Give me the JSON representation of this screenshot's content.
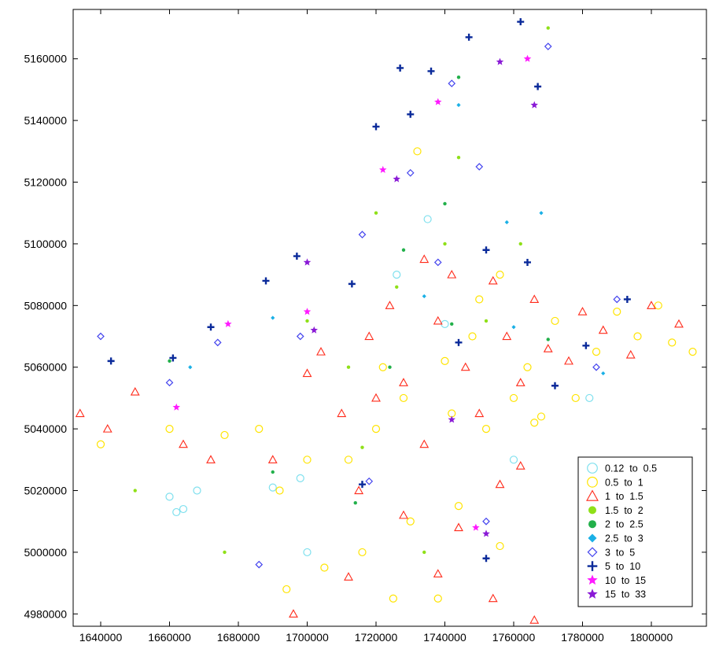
{
  "chart_data": {
    "type": "scatter",
    "title": "",
    "xlabel": "",
    "ylabel": "",
    "xlim": [
      1632000,
      1816000
    ],
    "ylim": [
      4976000,
      5176000
    ],
    "grid": false,
    "legend_position": "bottom-right",
    "x_ticks": [
      "1640000",
      "1660000",
      "1680000",
      "1700000",
      "1720000",
      "1740000",
      "1760000",
      "1780000",
      "1800000"
    ],
    "x_tick_values": [
      1640000,
      1660000,
      1680000,
      1700000,
      1720000,
      1740000,
      1760000,
      1780000,
      1800000
    ],
    "y_ticks": [
      "4980000",
      "5000000",
      "5020000",
      "5040000",
      "5060000",
      "5080000",
      "5100000",
      "5120000",
      "5140000",
      "5160000"
    ],
    "y_tick_values": [
      4980000,
      5000000,
      5020000,
      5040000,
      5060000,
      5080000,
      5100000,
      5120000,
      5140000,
      5160000
    ],
    "series": [
      {
        "name": "0.12  to  0.5",
        "marker": "open-circle",
        "color": "#7fe0ee",
        "points": [
          [
            1660000,
            5018000
          ],
          [
            1664000,
            5014000
          ],
          [
            1668000,
            5020000
          ],
          [
            1690000,
            5021000
          ],
          [
            1698000,
            5024000
          ],
          [
            1740000,
            5074000
          ],
          [
            1760000,
            5030000
          ],
          [
            1782000,
            5050000
          ],
          [
            1662000,
            5013000
          ],
          [
            1726000,
            5090000
          ],
          [
            1735000,
            5108000
          ],
          [
            1700000,
            5000000
          ]
        ]
      },
      {
        "name": "0.5  to  1",
        "marker": "open-circle",
        "color": "#ffe400",
        "points": [
          [
            1640000,
            5035000
          ],
          [
            1660000,
            5040000
          ],
          [
            1676000,
            5038000
          ],
          [
            1692000,
            5020000
          ],
          [
            1700000,
            5030000
          ],
          [
            1705000,
            4995000
          ],
          [
            1712000,
            5030000
          ],
          [
            1720000,
            5040000
          ],
          [
            1722000,
            5060000
          ],
          [
            1730000,
            5010000
          ],
          [
            1738000,
            4985000
          ],
          [
            1742000,
            5045000
          ],
          [
            1748000,
            5070000
          ],
          [
            1752000,
            5040000
          ],
          [
            1756000,
            5090000
          ],
          [
            1760000,
            5050000
          ],
          [
            1764000,
            5060000
          ],
          [
            1768000,
            5044000
          ],
          [
            1772000,
            5075000
          ],
          [
            1778000,
            5050000
          ],
          [
            1784000,
            5065000
          ],
          [
            1790000,
            5078000
          ],
          [
            1796000,
            5070000
          ],
          [
            1802000,
            5080000
          ],
          [
            1806000,
            5068000
          ],
          [
            1812000,
            5065000
          ],
          [
            1732000,
            5130000
          ],
          [
            1744000,
            5015000
          ],
          [
            1756000,
            5002000
          ],
          [
            1686000,
            5040000
          ],
          [
            1716000,
            5000000
          ],
          [
            1728000,
            5050000
          ],
          [
            1740000,
            5062000
          ],
          [
            1750000,
            5082000
          ],
          [
            1766000,
            5042000
          ],
          [
            1694000,
            4988000
          ],
          [
            1725000,
            4985000
          ]
        ]
      },
      {
        "name": "1  to  1.5",
        "marker": "open-triangle",
        "color": "#ff2a1a",
        "points": [
          [
            1634000,
            5045000
          ],
          [
            1642000,
            5040000
          ],
          [
            1650000,
            5052000
          ],
          [
            1664000,
            5035000
          ],
          [
            1672000,
            5030000
          ],
          [
            1690000,
            5030000
          ],
          [
            1704000,
            5065000
          ],
          [
            1710000,
            5045000
          ],
          [
            1715000,
            5020000
          ],
          [
            1718000,
            5070000
          ],
          [
            1724000,
            5080000
          ],
          [
            1728000,
            5055000
          ],
          [
            1734000,
            5035000
          ],
          [
            1738000,
            5075000
          ],
          [
            1742000,
            5090000
          ],
          [
            1746000,
            5060000
          ],
          [
            1750000,
            5045000
          ],
          [
            1754000,
            5088000
          ],
          [
            1758000,
            5070000
          ],
          [
            1762000,
            5055000
          ],
          [
            1766000,
            5082000
          ],
          [
            1770000,
            5066000
          ],
          [
            1776000,
            5062000
          ],
          [
            1780000,
            5078000
          ],
          [
            1786000,
            5072000
          ],
          [
            1794000,
            5064000
          ],
          [
            1800000,
            5080000
          ],
          [
            1808000,
            5074000
          ],
          [
            1728000,
            5012000
          ],
          [
            1738000,
            4993000
          ],
          [
            1744000,
            5008000
          ],
          [
            1754000,
            4985000
          ],
          [
            1762000,
            5028000
          ],
          [
            1712000,
            4992000
          ],
          [
            1696000,
            4980000
          ],
          [
            1720000,
            5050000
          ],
          [
            1734000,
            5095000
          ],
          [
            1756000,
            5022000
          ],
          [
            1766000,
            4978000
          ],
          [
            1700000,
            5058000
          ]
        ]
      },
      {
        "name": "1.5  to  2",
        "marker": "filled-circle",
        "color": "#8fe018",
        "points": [
          [
            1650000,
            5020000
          ],
          [
            1676000,
            5000000
          ],
          [
            1700000,
            5075000
          ],
          [
            1712000,
            5060000
          ],
          [
            1720000,
            5110000
          ],
          [
            1726000,
            5086000
          ],
          [
            1740000,
            5100000
          ],
          [
            1752000,
            5075000
          ],
          [
            1762000,
            5100000
          ],
          [
            1770000,
            5170000
          ],
          [
            1744000,
            5128000
          ],
          [
            1734000,
            5000000
          ],
          [
            1716000,
            5034000
          ]
        ]
      },
      {
        "name": "2  to  2.5",
        "marker": "filled-circle",
        "color": "#22b04a",
        "points": [
          [
            1660000,
            5062000
          ],
          [
            1690000,
            5026000
          ],
          [
            1714000,
            5016000
          ],
          [
            1728000,
            5098000
          ],
          [
            1742000,
            5074000
          ],
          [
            1740000,
            5113000
          ],
          [
            1770000,
            5069000
          ],
          [
            1744000,
            5154000
          ],
          [
            1724000,
            5060000
          ]
        ]
      },
      {
        "name": "2.5  to  3",
        "marker": "filled-diamond",
        "color": "#1ab0e6",
        "points": [
          [
            1666000,
            5060000
          ],
          [
            1690000,
            5076000
          ],
          [
            1734000,
            5083000
          ],
          [
            1758000,
            5107000
          ],
          [
            1786000,
            5058000
          ],
          [
            1744000,
            5145000
          ],
          [
            1768000,
            5110000
          ],
          [
            1760000,
            5073000
          ]
        ]
      },
      {
        "name": "3  to  5",
        "marker": "open-diamond",
        "color": "#4444ee",
        "points": [
          [
            1640000,
            5070000
          ],
          [
            1660000,
            5055000
          ],
          [
            1674000,
            5068000
          ],
          [
            1698000,
            5070000
          ],
          [
            1730000,
            5123000
          ],
          [
            1742000,
            5152000
          ],
          [
            1750000,
            5125000
          ],
          [
            1770000,
            5164000
          ],
          [
            1784000,
            5060000
          ],
          [
            1790000,
            5082000
          ],
          [
            1718000,
            5023000
          ],
          [
            1752000,
            5010000
          ],
          [
            1686000,
            4996000
          ],
          [
            1716000,
            5103000
          ],
          [
            1738000,
            5094000
          ]
        ]
      },
      {
        "name": "5  to  10",
        "marker": "plus",
        "color": "#0a2a9a",
        "points": [
          [
            1643000,
            5062000
          ],
          [
            1661000,
            5063000
          ],
          [
            1672000,
            5073000
          ],
          [
            1688000,
            5088000
          ],
          [
            1697000,
            5096000
          ],
          [
            1713000,
            5087000
          ],
          [
            1720000,
            5138000
          ],
          [
            1730000,
            5142000
          ],
          [
            1736000,
            5156000
          ],
          [
            1747000,
            5167000
          ],
          [
            1752000,
            5098000
          ],
          [
            1762000,
            5172000
          ],
          [
            1764000,
            5094000
          ],
          [
            1767000,
            5151000
          ],
          [
            1781000,
            5067000
          ],
          [
            1793000,
            5082000
          ],
          [
            1772000,
            5054000
          ],
          [
            1716000,
            5022000
          ],
          [
            1752000,
            4998000
          ],
          [
            1744000,
            5068000
          ],
          [
            1727000,
            5157000
          ]
        ]
      },
      {
        "name": "10  to  15",
        "marker": "filled-star",
        "color": "#ff1aff",
        "points": [
          [
            1662000,
            5047000
          ],
          [
            1677000,
            5074000
          ],
          [
            1722000,
            5124000
          ],
          [
            1749000,
            5008000
          ],
          [
            1764000,
            5160000
          ],
          [
            1738000,
            5146000
          ],
          [
            1700000,
            5078000
          ]
        ]
      },
      {
        "name": "15  to  33",
        "marker": "filled-star",
        "color": "#8a1ad6",
        "points": [
          [
            1700000,
            5094000
          ],
          [
            1726000,
            5121000
          ],
          [
            1756000,
            5159000
          ],
          [
            1766000,
            5145000
          ],
          [
            1752000,
            5006000
          ],
          [
            1742000,
            5043000
          ],
          [
            1702000,
            5072000
          ]
        ]
      }
    ]
  }
}
